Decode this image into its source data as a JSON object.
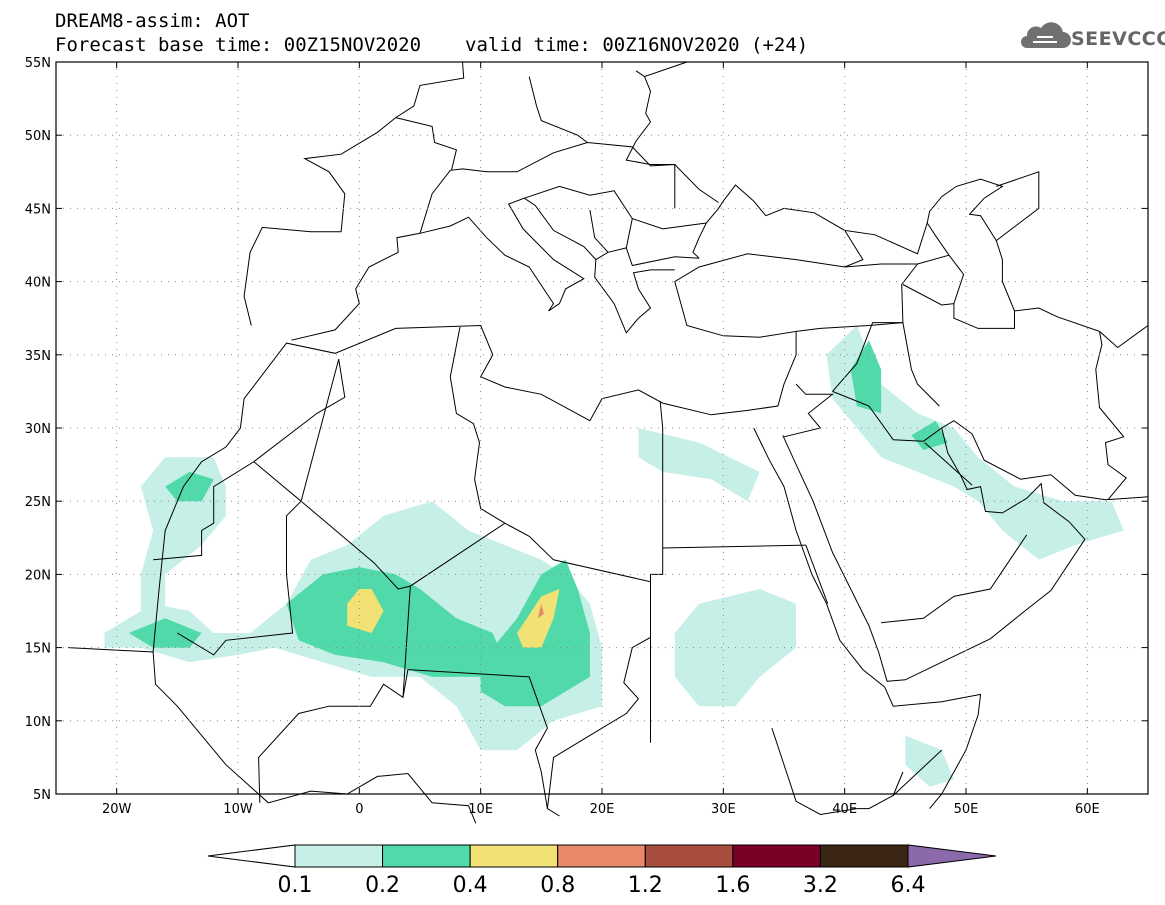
{
  "header": {
    "line1": "DREAM8-assim: AOT",
    "base_time": "Forecast base time: 00Z15NOV2020",
    "valid_time": "valid time: 00Z16NOV2020 (+24)"
  },
  "logo": {
    "text": "SEEVCCC",
    "icon": "cloud-icon"
  },
  "map": {
    "lon_range": [
      -25,
      65
    ],
    "lat_range": [
      5,
      55
    ],
    "lon_ticks": [
      {
        "lon": -20,
        "label": "20W"
      },
      {
        "lon": -10,
        "label": "10W"
      },
      {
        "lon": 0,
        "label": "0"
      },
      {
        "lon": 10,
        "label": "10E"
      },
      {
        "lon": 20,
        "label": "20E"
      },
      {
        "lon": 30,
        "label": "30E"
      },
      {
        "lon": 40,
        "label": "40E"
      },
      {
        "lon": 50,
        "label": "50E"
      },
      {
        "lon": 60,
        "label": "60E"
      }
    ],
    "lat_ticks": [
      {
        "lat": 5,
        "label": "5N"
      },
      {
        "lat": 10,
        "label": "10N"
      },
      {
        "lat": 15,
        "label": "15N"
      },
      {
        "lat": 20,
        "label": "20N"
      },
      {
        "lat": 25,
        "label": "25N"
      },
      {
        "lat": 30,
        "label": "30N"
      },
      {
        "lat": 35,
        "label": "35N"
      },
      {
        "lat": 40,
        "label": "40N"
      },
      {
        "lat": 45,
        "label": "45N"
      },
      {
        "lat": 50,
        "label": "50N"
      },
      {
        "lat": 55,
        "label": "55N"
      }
    ],
    "grid": true
  },
  "colorbar": {
    "levels": [
      "0.1",
      "0.2",
      "0.4",
      "0.8",
      "1.2",
      "1.6",
      "3.2",
      "6.4"
    ],
    "colors": [
      "#ffffff",
      "#c6efe8",
      "#52d9a9",
      "#f2e275",
      "#e8896b",
      "#a84e3f",
      "#7a0026",
      "#3b2515",
      "#8a6aa8"
    ]
  },
  "aot_fields": [
    {
      "level": 1,
      "region": "west-africa-coast",
      "poly": [
        [
          -18,
          26
        ],
        [
          -16,
          28
        ],
        [
          -12,
          28
        ],
        [
          -11,
          26
        ],
        [
          -11,
          24
        ],
        [
          -13,
          22
        ],
        [
          -16,
          20
        ],
        [
          -16,
          17
        ],
        [
          -18,
          17
        ],
        [
          -18,
          20
        ],
        [
          -17,
          23
        ]
      ]
    },
    {
      "level": 1,
      "region": "sahel",
      "poly": [
        [
          -21,
          16
        ],
        [
          -17,
          18
        ],
        [
          -14,
          17.5
        ],
        [
          -12,
          16
        ],
        [
          -9,
          16
        ],
        [
          -6,
          18
        ],
        [
          -4,
          21
        ],
        [
          -1,
          22
        ],
        [
          2,
          24
        ],
        [
          6,
          25
        ],
        [
          9,
          23
        ],
        [
          12,
          22
        ],
        [
          15,
          21
        ],
        [
          17,
          20
        ],
        [
          19,
          18
        ],
        [
          20,
          15
        ],
        [
          20,
          11
        ],
        [
          16,
          10
        ],
        [
          13,
          8
        ],
        [
          10,
          8
        ],
        [
          8,
          11
        ],
        [
          5,
          13
        ],
        [
          1,
          13
        ],
        [
          -3,
          14
        ],
        [
          -7,
          15
        ],
        [
          -10,
          14.5
        ],
        [
          -14,
          14
        ],
        [
          -18,
          15
        ],
        [
          -21,
          15
        ]
      ]
    },
    {
      "level": 1,
      "region": "arabia-gulf",
      "poly": [
        [
          38.5,
          35
        ],
        [
          41,
          37
        ],
        [
          43,
          33
        ],
        [
          46,
          31
        ],
        [
          49,
          30
        ],
        [
          51,
          28
        ],
        [
          54,
          26
        ],
        [
          58,
          25
        ],
        [
          62,
          25
        ],
        [
          63,
          23
        ],
        [
          59,
          22
        ],
        [
          56,
          21
        ],
        [
          53,
          23
        ],
        [
          51,
          25
        ],
        [
          49,
          26
        ],
        [
          46,
          27
        ],
        [
          43,
          28
        ],
        [
          41,
          30
        ],
        [
          39,
          32
        ]
      ]
    },
    {
      "level": 1,
      "region": "east-africa",
      "poly": [
        [
          28,
          18
        ],
        [
          33,
          19
        ],
        [
          36,
          18
        ],
        [
          36,
          15
        ],
        [
          33,
          13
        ],
        [
          31,
          11
        ],
        [
          28,
          11
        ],
        [
          26,
          13
        ],
        [
          26,
          16
        ]
      ]
    },
    {
      "level": 1,
      "region": "egypt-libya",
      "poly": [
        [
          23,
          30
        ],
        [
          28,
          29
        ],
        [
          33,
          27
        ],
        [
          32,
          25
        ],
        [
          29,
          26.5
        ],
        [
          25,
          27
        ],
        [
          23,
          28
        ]
      ]
    },
    {
      "level": 1,
      "region": "horn",
      "poly": [
        [
          45,
          9
        ],
        [
          48,
          8
        ],
        [
          49,
          6
        ],
        [
          47,
          5.5
        ],
        [
          45,
          7
        ]
      ]
    },
    {
      "level": 2,
      "region": "central-sahel",
      "poly": [
        [
          -6,
          18
        ],
        [
          -3,
          20
        ],
        [
          0,
          20.5
        ],
        [
          3,
          20
        ],
        [
          5,
          19
        ],
        [
          8,
          17
        ],
        [
          11,
          16
        ],
        [
          12,
          14
        ],
        [
          10,
          13
        ],
        [
          6,
          13
        ],
        [
          2,
          14
        ],
        [
          -2,
          14.5
        ],
        [
          -5,
          15.5
        ]
      ]
    },
    {
      "level": 2,
      "region": "lake-chad",
      "poly": [
        [
          11,
          15
        ],
        [
          13,
          17
        ],
        [
          15,
          20
        ],
        [
          17,
          21
        ],
        [
          18,
          19
        ],
        [
          19,
          16
        ],
        [
          19,
          13
        ],
        [
          17,
          12
        ],
        [
          15,
          11
        ],
        [
          12,
          11
        ],
        [
          10,
          12
        ],
        [
          10,
          14
        ]
      ]
    },
    {
      "level": 2,
      "region": "senegal",
      "poly": [
        [
          -19,
          16
        ],
        [
          -16,
          17
        ],
        [
          -13,
          16
        ],
        [
          -14,
          15
        ],
        [
          -17,
          15
        ]
      ]
    },
    {
      "level": 2,
      "region": "western-sahara",
      "poly": [
        [
          -16,
          26
        ],
        [
          -14,
          27
        ],
        [
          -12,
          26.5
        ],
        [
          -13,
          25
        ],
        [
          -15,
          25
        ]
      ]
    },
    {
      "level": 2,
      "region": "iraq",
      "poly": [
        [
          40.5,
          34
        ],
        [
          42,
          36
        ],
        [
          43,
          34
        ],
        [
          43,
          31
        ],
        [
          41,
          31.5
        ]
      ]
    },
    {
      "level": 2,
      "region": "kuwait",
      "poly": [
        [
          45.5,
          29.5
        ],
        [
          47.5,
          30.5
        ],
        [
          48.5,
          29
        ],
        [
          46.5,
          28.5
        ]
      ]
    },
    {
      "level": 3,
      "region": "niger-hotspot",
      "poly": [
        [
          -1,
          18
        ],
        [
          0,
          19
        ],
        [
          1,
          19
        ],
        [
          2,
          17.5
        ],
        [
          1,
          16
        ],
        [
          -1,
          16.5
        ]
      ]
    },
    {
      "level": 3,
      "region": "chad-hotspot",
      "poly": [
        [
          13,
          16
        ],
        [
          15,
          18.5
        ],
        [
          16.5,
          19
        ],
        [
          16,
          17
        ],
        [
          15,
          15
        ],
        [
          13.5,
          15
        ]
      ]
    },
    {
      "level": 4,
      "region": "chad-core",
      "poly": [
        [
          14.7,
          17
        ],
        [
          15,
          18
        ],
        [
          15.2,
          17.3
        ]
      ]
    }
  ]
}
